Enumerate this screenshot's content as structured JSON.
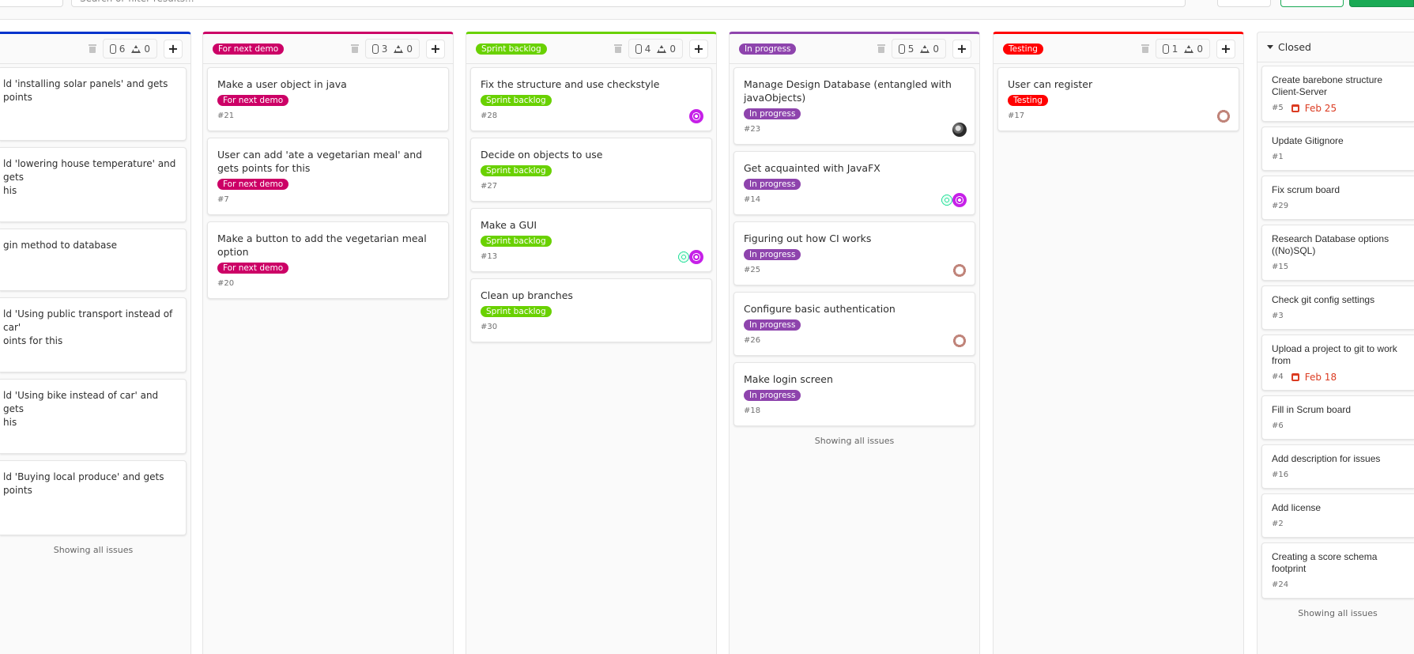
{
  "topbar": {
    "search_placeholder": "Search or filter results..."
  },
  "colors": {
    "primary_green": "#1aaa55",
    "due_red": "#db3b21"
  },
  "columns": [
    {
      "label": "",
      "color": "#0033cc",
      "issues": "6",
      "weight": "0",
      "showing": "Showing all issues",
      "cards": [
        {
          "title": "ld 'installing solar panels' and gets points",
          "h": 93
        },
        {
          "title": "ld 'lowering house temperature' and gets\nhis",
          "h": 95
        },
        {
          "title": "gin method to database",
          "h": 79
        },
        {
          "title": "ld 'Using public transport instead of car'\noints for this",
          "h": 95
        },
        {
          "title": "ld 'Using bike instead of car' and gets\nhis",
          "h": 95
        },
        {
          "title": "ld 'Buying local produce' and gets points",
          "h": 95
        }
      ]
    },
    {
      "label": "For next demo",
      "color": "#cc0066",
      "issues": "3",
      "weight": "0",
      "cards": [
        {
          "title": "Make a user object in java",
          "label": "For next demo",
          "number": "#21"
        },
        {
          "title": "User can add 'ate a vegetarian meal' and gets points for this",
          "label": "For next demo",
          "number": "#7"
        },
        {
          "title": "Make a button to add the vegetarian meal option",
          "label": "For next demo",
          "number": "#20"
        }
      ]
    },
    {
      "label": "Sprint backlog",
      "color": "#69d100",
      "issues": "4",
      "weight": "0",
      "cards": [
        {
          "title": "Fix the structure and use checkstyle",
          "label": "Sprint backlog",
          "number": "#28",
          "avatars": [
            "magenta"
          ]
        },
        {
          "title": "Decide on objects to use",
          "label": "Sprint backlog",
          "number": "#27"
        },
        {
          "title": "Make a GUI",
          "label": "Sprint backlog",
          "number": "#13",
          "avatars": [
            "mint",
            "magenta"
          ]
        },
        {
          "title": "Clean up branches",
          "label": "Sprint backlog",
          "number": "#30"
        }
      ]
    },
    {
      "label": "In progress",
      "color": "#8e44ad",
      "issues": "5",
      "weight": "0",
      "showing": "Showing all issues",
      "cards": [
        {
          "title": "Manage Design Database (entangled with javaObjects)",
          "label": "In progress",
          "number": "#23",
          "avatars": [
            "photo"
          ]
        },
        {
          "title": "Get acquainted with JavaFX",
          "label": "In progress",
          "number": "#14",
          "avatars": [
            "mint",
            "magenta"
          ]
        },
        {
          "title": "Figuring out how CI works",
          "label": "In progress",
          "number": "#25",
          "avatars": [
            "ring"
          ]
        },
        {
          "title": "Configure basic authentication",
          "label": "In progress",
          "number": "#26",
          "avatars": [
            "ring"
          ]
        },
        {
          "title": "Make login screen",
          "label": "In progress",
          "number": "#18"
        }
      ]
    },
    {
      "label": "Testing",
      "color": "#ff0000",
      "issues": "1",
      "weight": "0",
      "cards": [
        {
          "title": "User can register",
          "label": "Testing",
          "number": "#17",
          "avatars": [
            "ring"
          ]
        }
      ]
    },
    {
      "closed": true,
      "title": "Closed",
      "showing": "Showing all issues",
      "cards": [
        {
          "title": "Create barebone structure Client-Server",
          "number": "#5",
          "due": "Feb 25"
        },
        {
          "title": "Update Gitignore",
          "number": "#1"
        },
        {
          "title": "Fix scrum board",
          "number": "#29"
        },
        {
          "title": "Research Database options ((No)SQL)",
          "number": "#15"
        },
        {
          "title": "Check git config settings",
          "number": "#3"
        },
        {
          "title": "Upload a project to git to work from",
          "number": "#4",
          "due": "Feb 18"
        },
        {
          "title": "Fill in Scrum board",
          "number": "#6"
        },
        {
          "title": "Add description for issues",
          "number": "#16"
        },
        {
          "title": "Add license",
          "number": "#2"
        },
        {
          "title": "Creating a score schema footprint",
          "number": "#24"
        }
      ]
    }
  ]
}
